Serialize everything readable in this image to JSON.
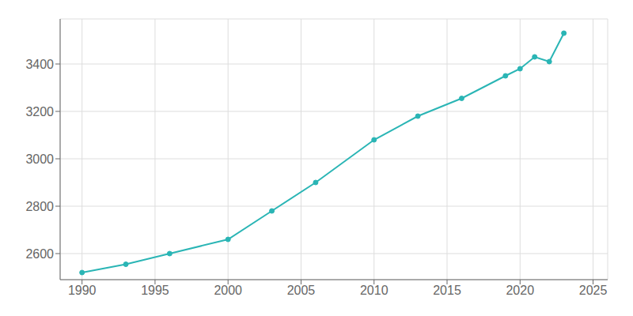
{
  "chart_data": {
    "type": "line",
    "x": [
      1990,
      1993,
      1996,
      2000,
      2003,
      2006,
      2010,
      2013,
      2016,
      2019,
      2020,
      2021,
      2022,
      2023
    ],
    "values": [
      2520,
      2555,
      2600,
      2660,
      2780,
      2900,
      3080,
      3180,
      3255,
      3350,
      3380,
      3430,
      3410,
      3530
    ],
    "color": "#2ab5b5",
    "xlim": [
      1988.5,
      2026
    ],
    "ylim": [
      2490,
      3590
    ],
    "xticks": [
      1990,
      1995,
      2000,
      2005,
      2010,
      2015,
      2020,
      2025
    ],
    "yticks": [
      2600,
      2800,
      3000,
      3200,
      3400
    ],
    "grid": true,
    "marker": "circle"
  }
}
